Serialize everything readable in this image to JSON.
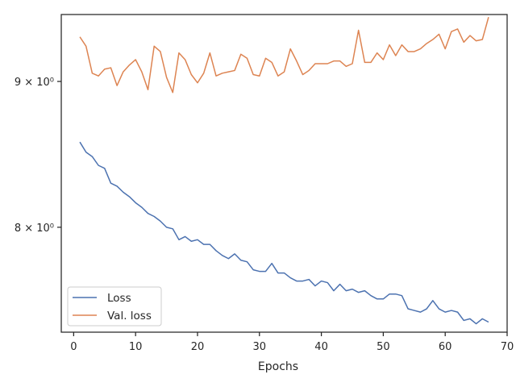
{
  "chart_data": {
    "type": "line",
    "xlabel": "Epochs",
    "ylabel": "",
    "xlim": [
      -2,
      70
    ],
    "ylim": [
      7.35,
      9.5
    ],
    "yscale": "log",
    "grid": false,
    "legend_position": "lower-left",
    "x_ticks": [
      0,
      10,
      20,
      30,
      40,
      50,
      60,
      70
    ],
    "x_tick_labels": [
      "0",
      "10",
      "20",
      "30",
      "40",
      "50",
      "60",
      "70"
    ],
    "y_ticks": [
      8,
      9
    ],
    "y_tick_labels": [
      "8 × 10⁰",
      "9 × 10⁰"
    ],
    "x": [
      1,
      2,
      3,
      4,
      5,
      6,
      7,
      8,
      9,
      10,
      11,
      12,
      13,
      14,
      15,
      16,
      17,
      18,
      19,
      20,
      21,
      22,
      23,
      24,
      25,
      26,
      27,
      28,
      29,
      30,
      31,
      32,
      33,
      34,
      35,
      36,
      37,
      38,
      39,
      40,
      41,
      42,
      43,
      44,
      45,
      46,
      47,
      48,
      49,
      50,
      51,
      52,
      53,
      54,
      55,
      56,
      57,
      58,
      59,
      60,
      61,
      62,
      63,
      64,
      65,
      66,
      67
    ],
    "series": [
      {
        "name": "Loss",
        "color": "#4c72b0",
        "values": [
          8.57,
          8.5,
          8.47,
          8.41,
          8.39,
          8.29,
          8.27,
          8.23,
          8.2,
          8.16,
          8.13,
          8.09,
          8.07,
          8.04,
          8.0,
          7.99,
          7.92,
          7.94,
          7.91,
          7.92,
          7.89,
          7.89,
          7.85,
          7.82,
          7.8,
          7.83,
          7.79,
          7.78,
          7.73,
          7.72,
          7.72,
          7.77,
          7.71,
          7.71,
          7.68,
          7.66,
          7.66,
          7.67,
          7.63,
          7.66,
          7.65,
          7.6,
          7.64,
          7.6,
          7.61,
          7.59,
          7.6,
          7.57,
          7.55,
          7.55,
          7.58,
          7.58,
          7.57,
          7.49,
          7.48,
          7.47,
          7.49,
          7.54,
          7.49,
          7.47,
          7.48,
          7.47,
          7.42,
          7.43,
          7.4,
          7.43,
          7.41
        ]
      },
      {
        "name": "Val. loss",
        "color": "#dd8452",
        "values": [
          9.33,
          9.26,
          9.06,
          9.04,
          9.09,
          9.1,
          8.97,
          9.07,
          9.12,
          9.16,
          9.07,
          8.94,
          9.26,
          9.22,
          9.03,
          8.92,
          9.21,
          9.16,
          9.05,
          8.99,
          9.06,
          9.21,
          9.04,
          9.06,
          9.07,
          9.08,
          9.2,
          9.17,
          9.05,
          9.04,
          9.17,
          9.14,
          9.04,
          9.07,
          9.24,
          9.15,
          9.05,
          9.08,
          9.13,
          9.13,
          9.13,
          9.15,
          9.15,
          9.11,
          9.13,
          9.38,
          9.14,
          9.14,
          9.21,
          9.16,
          9.27,
          9.19,
          9.27,
          9.22,
          9.22,
          9.24,
          9.28,
          9.31,
          9.35,
          9.24,
          9.37,
          9.39,
          9.29,
          9.34,
          9.3,
          9.31,
          9.48
        ]
      }
    ]
  }
}
